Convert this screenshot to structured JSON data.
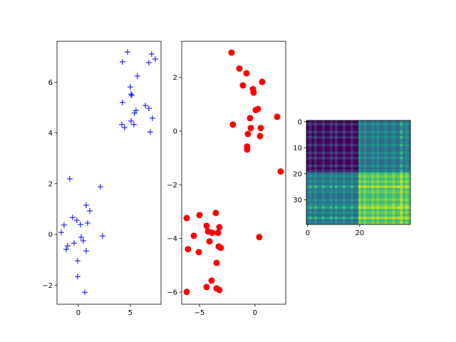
{
  "chart_data": [
    {
      "type": "scatter",
      "marker": "plus",
      "color": "#0000ff",
      "xlim": [
        -2.05,
        7.95
      ],
      "ylim": [
        -2.75,
        7.61
      ],
      "xticks": [
        0,
        5
      ],
      "yticks": [
        -2,
        0,
        2,
        4,
        6
      ],
      "points": [
        [
          4.73,
          7.19
        ],
        [
          7.05,
          7.11
        ],
        [
          7.4,
          6.91
        ],
        [
          4.25,
          6.8
        ],
        [
          6.78,
          6.77
        ],
        [
          5.68,
          6.24
        ],
        [
          5.0,
          5.81
        ],
        [
          5.07,
          5.53
        ],
        [
          5.14,
          5.48
        ],
        [
          4.25,
          5.2
        ],
        [
          6.44,
          5.08
        ],
        [
          6.78,
          4.97
        ],
        [
          5.55,
          4.89
        ],
        [
          5.41,
          4.78
        ],
        [
          7.12,
          4.58
        ],
        [
          5.07,
          4.47
        ],
        [
          5.34,
          4.33
        ],
        [
          4.18,
          4.33
        ],
        [
          4.45,
          4.21
        ],
        [
          6.92,
          4.04
        ],
        [
          -0.82,
          2.19
        ],
        [
          2.12,
          1.88
        ],
        [
          0.75,
          1.15
        ],
        [
          1.1,
          0.93
        ],
        [
          -1.37,
          0.37
        ],
        [
          -0.55,
          0.67
        ],
        [
          -0.14,
          0.56
        ],
        [
          0.21,
          0.39
        ],
        [
          0.89,
          0.45
        ],
        [
          -1.64,
          0.08
        ],
        [
          -1.03,
          -0.45
        ],
        [
          -1.16,
          -0.59
        ],
        [
          -0.41,
          -0.34
        ],
        [
          0.27,
          -0.11
        ],
        [
          0.48,
          -0.25
        ],
        [
          2.33,
          -0.06
        ],
        [
          0.75,
          -0.65
        ],
        [
          -0.07,
          -1.04
        ],
        [
          -0.07,
          -1.66
        ],
        [
          0.62,
          -2.28
        ]
      ]
    },
    {
      "type": "scatter",
      "marker": "circle",
      "color": "#ff0000",
      "xlim": [
        -6.6,
        2.76
      ],
      "ylim": [
        -6.45,
        3.34
      ],
      "xticks": [
        -5,
        0
      ],
      "yticks": [
        -6,
        -4,
        -2,
        0,
        2
      ],
      "points": [
        [
          -2.12,
          2.92
        ],
        [
          -1.41,
          2.33
        ],
        [
          -0.77,
          2.15
        ],
        [
          -1.09,
          1.7
        ],
        [
          0.64,
          1.83
        ],
        [
          -0.19,
          1.56
        ],
        [
          -0.13,
          1.43
        ],
        [
          0.26,
          0.82
        ],
        [
          0.06,
          0.78
        ],
        [
          -0.45,
          0.48
        ],
        [
          1.99,
          0.53
        ],
        [
          -1.99,
          0.24
        ],
        [
          -0.38,
          0.11
        ],
        [
          0.51,
          0.11
        ],
        [
          -0.64,
          -0.11
        ],
        [
          0.45,
          -0.19
        ],
        [
          -0.71,
          -0.58
        ],
        [
          -0.71,
          -0.69
        ],
        [
          2.31,
          -1.51
        ],
        [
          -6.15,
          -3.24
        ],
        [
          -5.0,
          -3.13
        ],
        [
          -3.53,
          -3.05
        ],
        [
          -5.51,
          -3.9
        ],
        [
          -4.36,
          -3.53
        ],
        [
          -3.21,
          -3.58
        ],
        [
          -4.23,
          -3.74
        ],
        [
          -3.85,
          -3.79
        ],
        [
          -3.33,
          -3.79
        ],
        [
          -6.03,
          -4.4
        ],
        [
          -5.06,
          -4.51
        ],
        [
          -4.1,
          -4.11
        ],
        [
          0.38,
          -3.95
        ],
        [
          -3.27,
          -4.3
        ],
        [
          -3.08,
          -4.35
        ],
        [
          -3.46,
          -4.91
        ],
        [
          -3.91,
          -5.57
        ],
        [
          -4.36,
          -5.81
        ],
        [
          -3.46,
          -5.86
        ],
        [
          -3.21,
          -5.92
        ],
        [
          -6.15,
          -5.99
        ]
      ]
    },
    {
      "type": "heatmap",
      "colormap": "viridis",
      "xticks": [
        0,
        20
      ],
      "yticks": [
        0,
        10,
        20,
        30
      ],
      "value_range": [
        0,
        9
      ],
      "rows": [
        "0101001001010010010043433434334334335343",
        "1212112112121121121154544545445445446454",
        "0101001001010010010043433434334334335343",
        "0101001001010010010043433434334334335343",
        "1212112112121121121154544545445445446454",
        "0101001001010010010043433434334334335343",
        "1212112112121121121154544545445445446454",
        "0101001001010010010043433434334334335343",
        "0101001001010010010043433434334334335343",
        "1212112112121121121154544545445445446454",
        "0101001001010010010043433434334334335343",
        "0101001001010010010043433434334334335343",
        "1212112112121121121154544545445445446454",
        "0101001001010010010043433434334334335343",
        "1212112112121121121154544545445445446454",
        "0101001001010010010043433434334334335343",
        "0101001001010010010043433434334334335343",
        "1212112112121121121154544545445445446454",
        "0101001001010010010043433434334334335343",
        "1212112112121121121154544545445445446454",
        "3434334334343343343376766767667667668676",
        "4545445445454454454487877878778778779787",
        "3434334334343343343376766767667667668676",
        "4545445445454454454487877878778778779787",
        "3434334334343343343376766767667667668676",
        "5656556556565565565598988989889889899898",
        "3434334334343343343376766767667667668676",
        "4545445445454454454487877878778778779787",
        "3434334334343343343376766767667667668676",
        "3434334334343343343376766767667667668676",
        "4545445445454454454487877878778778779787",
        "3434334334343343343376766767667667668676",
        "4545445445454454454487877878778778779787",
        "5656556556565565565598988989889889899898",
        "3434334334343343343376766767667667668676",
        "4545445445454454454487877878778778779787",
        "3434334334343343343376766767667667668676",
        "5656556556565565565598988989889889899898",
        "3434334334343343343376766767667667668676",
        "4545445445454454454487877878778778779787"
      ]
    }
  ]
}
